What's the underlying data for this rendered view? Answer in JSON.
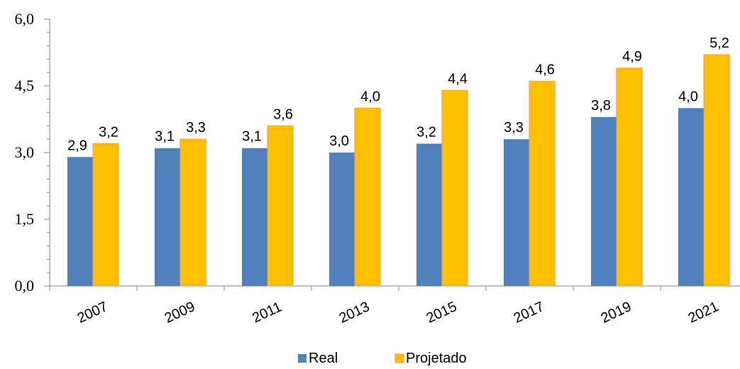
{
  "chart_data": {
    "type": "bar",
    "categories": [
      "2007",
      "2009",
      "2011",
      "2013",
      "2015",
      "2017",
      "2019",
      "2021"
    ],
    "series": [
      {
        "name": "Real",
        "values": [
          2.9,
          3.1,
          3.1,
          3.0,
          3.2,
          3.3,
          3.8,
          4.0
        ],
        "labels": [
          "2,9",
          "3,1",
          "3,1",
          "3,0",
          "3,2",
          "3,3",
          "3,8",
          "4,0"
        ],
        "color": "#4F81BD"
      },
      {
        "name": "Projetado",
        "values": [
          3.2,
          3.3,
          3.6,
          4.0,
          4.4,
          4.6,
          4.9,
          5.2
        ],
        "labels": [
          "3,2",
          "3,3",
          "3,6",
          "4,0",
          "4,4",
          "4,6",
          "4,9",
          "5,2"
        ],
        "color": "#FFC000"
      }
    ],
    "ylim": [
      0,
      6
    ],
    "yticks": [
      0,
      1.5,
      3.0,
      4.5,
      6.0
    ],
    "ytick_labels": [
      "0,0",
      "1,5",
      "3,0",
      "4,5",
      "6,0"
    ],
    "grid": false,
    "legend_position": "bottom",
    "title": "",
    "xlabel": "",
    "ylabel": ""
  }
}
